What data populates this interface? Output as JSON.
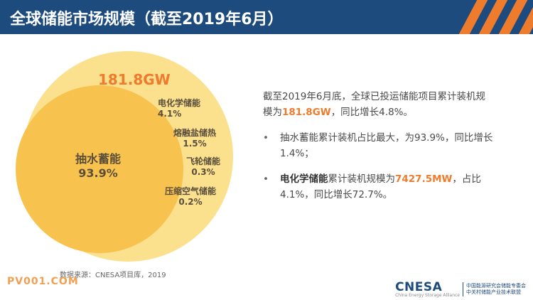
{
  "header": {
    "title": "全球储能市场规模（截至2019年6月）"
  },
  "diagram": {
    "total_label": "181.8GW",
    "items": [
      {
        "name": "抽水蓄能",
        "value": "93.9%"
      },
      {
        "name": "电化学储能",
        "value": "4.1%"
      },
      {
        "name": "熔融盐储热",
        "value": "1.5%"
      },
      {
        "name": "飞轮储能",
        "value": "0.3%"
      },
      {
        "name": "压缩空气储能",
        "value": "0.2%"
      }
    ],
    "colors": {
      "outer": "#fbe08e",
      "inner": "#f8c24f",
      "total_label": "#ef7b2d"
    }
  },
  "summary": {
    "line1": "截至2019年6月底，全球已投运储能项目累计装机规",
    "line2_prefix": "模为",
    "line2_highlight": "181.8GW",
    "line2_suffix": "，同比增长4.8%。"
  },
  "bullets": [
    {
      "symbol": "•",
      "text": "抽水蓄能累计装机占比最大，为93.9%，同比增长1.4%；"
    },
    {
      "symbol": "•",
      "strong": "电化学储能",
      "mid": "累计装机规模为",
      "highlight": "7427.5MW",
      "rest": "，占比4.1%，同比增长72.7%。"
    }
  ],
  "footer": {
    "source": "数据来源：CNESA项目库，2019",
    "watermark": "PV001.COM",
    "logo": "CNESA",
    "logo_sub": "China Energy Storage Alliance",
    "org_line1": "中国能源研究会储能专委会",
    "org_line2": "中关村储能产业技术联盟"
  }
}
